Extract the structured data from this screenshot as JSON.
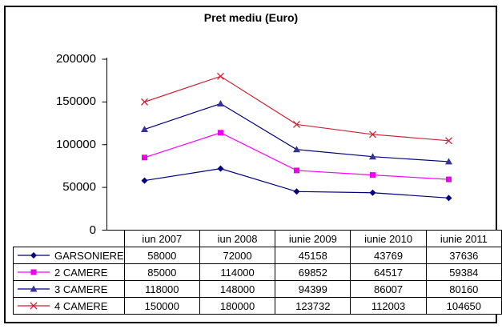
{
  "chart_data": {
    "type": "line",
    "title": "Pret mediu (Euro)",
    "categories": [
      "iun 2007",
      "iun 2008",
      "iunie 2009",
      "iunie 2010",
      "iunie 2011"
    ],
    "series": [
      {
        "name": "GARSONIERE",
        "values": [
          58000,
          72000,
          45158,
          43769,
          37636
        ],
        "color": "#000080",
        "marker": "diamond",
        "marker_color": "#000080"
      },
      {
        "name": "2 CAMERE",
        "values": [
          85000,
          114000,
          69852,
          64517,
          59384
        ],
        "color": "#FF00FF",
        "marker": "square",
        "marker_color": "#EE00EE"
      },
      {
        "name": "3 CAMERE",
        "values": [
          118000,
          148000,
          94399,
          86007,
          80160
        ],
        "color": "#000080",
        "marker": "triangle",
        "marker_color": "#333399"
      },
      {
        "name": "4 CAMERE",
        "values": [
          150000,
          180000,
          123732,
          112003,
          104650
        ],
        "color": "#CC2233",
        "marker": "x",
        "marker_color": "#CC2233"
      }
    ],
    "y_ticks": [
      0,
      50000,
      100000,
      150000,
      200000
    ],
    "ylim": [
      0,
      200000
    ],
    "xlabel": "",
    "ylabel": "",
    "grid": false,
    "legend_position": "table-left",
    "axis_color": "#000000"
  }
}
